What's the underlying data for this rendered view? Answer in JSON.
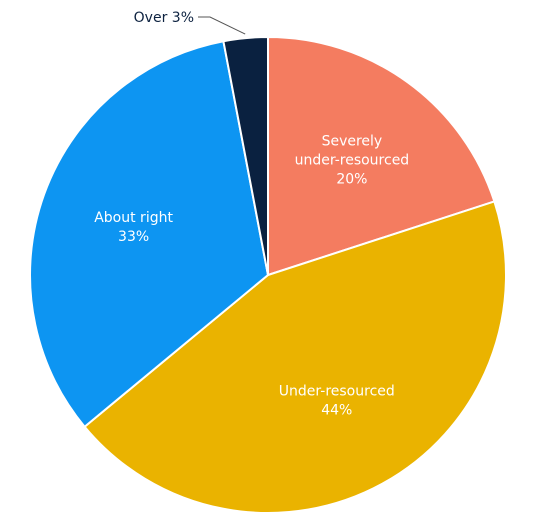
{
  "chart_data": {
    "type": "pie",
    "title": "",
    "slices": [
      {
        "label_lines": [
          "Severely",
          "under-resourced"
        ],
        "value": 20,
        "value_label": "20%",
        "color": "#f47c60"
      },
      {
        "label_lines": [
          "Under-resourced"
        ],
        "value": 44,
        "value_label": "44%",
        "color": "#eab300"
      },
      {
        "label_lines": [
          "About right"
        ],
        "value": 33,
        "value_label": "33%",
        "color": "#0d95f2"
      },
      {
        "label_lines": [
          "Over"
        ],
        "value": 3,
        "value_label": "3%",
        "color": "#0a2140"
      }
    ],
    "start_angle": "12 o'clock",
    "direction": "clockwise",
    "slice_border_color": "#ffffff"
  }
}
